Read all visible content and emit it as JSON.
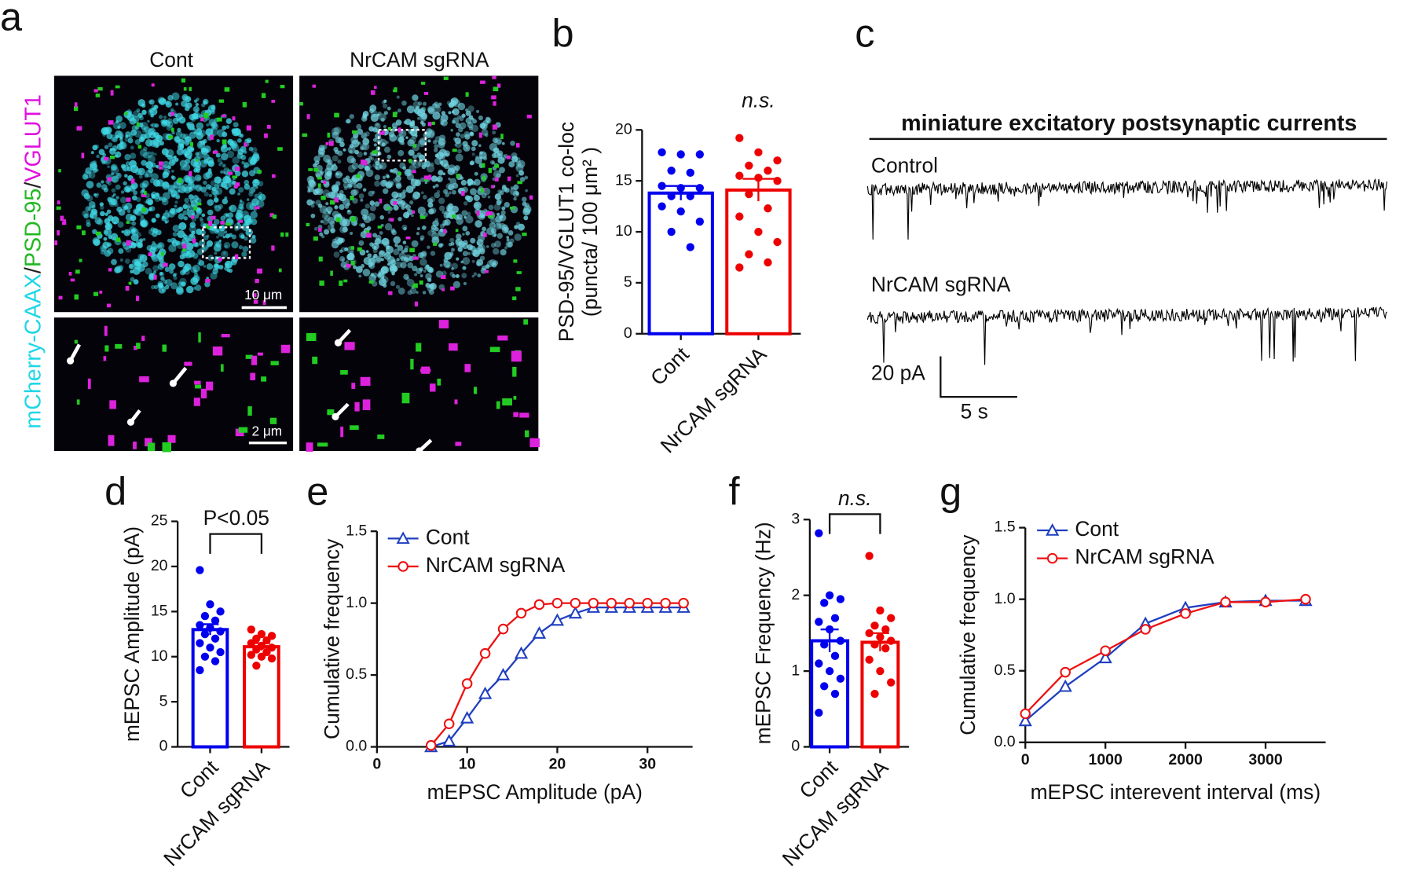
{
  "panel_labels": [
    "a",
    "b",
    "c",
    "d",
    "e",
    "f",
    "g"
  ],
  "panel_a": {
    "conditions": [
      "Cont",
      "NrCAM sgRNA"
    ],
    "label_parts": [
      {
        "text": "mCherry-CAAX",
        "color": "#1fd6e6"
      },
      {
        "text": "/",
        "color": "#222222"
      },
      {
        "text": "PSD-95",
        "color": "#22b822"
      },
      {
        "text": "/",
        "color": "#222222"
      },
      {
        "text": "VGLUT1",
        "color": "#e010e0"
      }
    ],
    "scale_bars": [
      "10 μm",
      "2 μm"
    ]
  },
  "panel_c": {
    "title": "miniature excitatory postsynaptic currents",
    "traces": [
      "Control",
      "NrCAM sgRNA"
    ],
    "scale_y": "20 pA",
    "scale_x": "5 s"
  },
  "chart_data": [
    {
      "type": "bar",
      "ylabel": [
        "PSD-95/VGLUT1 co-loc",
        "(puncta/ 100 μm² )"
      ],
      "categories": [
        "Cont",
        "NrCAM sgRNA"
      ],
      "colors": [
        "#0000ee",
        "#ee0000"
      ],
      "values": [
        13.8,
        14.1
      ],
      "errors": [
        0.7,
        1.1
      ],
      "points": [
        [
          17.8,
          17.6,
          17.6,
          16.0,
          15.8,
          14.5,
          14.3,
          14.3,
          13.5,
          13.5,
          12.5,
          12.0,
          11.0,
          10.0,
          8.5
        ],
        [
          19.2,
          17.8,
          17.0,
          16.5,
          16.0,
          15.5,
          15.3,
          15.0,
          13.7,
          12.3,
          11.5,
          10.0,
          9.0,
          7.8,
          7.0,
          6.5
        ]
      ],
      "ylim": [
        0,
        20
      ],
      "yticks": [
        0,
        5,
        10,
        15,
        20
      ],
      "annotation": "n.s."
    },
    {
      "type": "bar",
      "ylabel": [
        "mEPSC Amplitude (pA)"
      ],
      "categories": [
        "Cont",
        "NrCAM sgRNA"
      ],
      "colors": [
        "#0000ee",
        "#ee0000"
      ],
      "values": [
        13.0,
        11.1
      ],
      "errors": [
        0.6,
        0.4
      ],
      "points": [
        [
          19.6,
          15.8,
          15.0,
          14.5,
          14.0,
          13.5,
          13.2,
          12.8,
          12.5,
          12.0,
          11.5,
          11.0,
          10.5,
          10.0,
          9.5,
          8.5
        ],
        [
          13.0,
          12.5,
          12.3,
          12.0,
          11.8,
          11.5,
          11.2,
          11.0,
          10.8,
          10.5,
          10.2,
          10.0,
          9.8,
          9.0
        ]
      ],
      "ylim": [
        0,
        25
      ],
      "yticks": [
        0,
        5,
        10,
        15,
        20,
        25
      ],
      "annotation": "P<0.05"
    },
    {
      "type": "line",
      "xlabel": "mEPSC Amplitude (pA)",
      "ylabel": "Cumulative frequency",
      "x": [
        6,
        8,
        10,
        12,
        14,
        16,
        18,
        20,
        22,
        24,
        26,
        28,
        30,
        32,
        34
      ],
      "series": [
        {
          "name": "Cont",
          "color": "#1f3fbf",
          "marker": "triangle",
          "values": [
            0,
            0.04,
            0.2,
            0.37,
            0.5,
            0.65,
            0.79,
            0.88,
            0.93,
            0.97,
            0.97,
            0.97,
            0.97,
            0.97,
            0.97
          ]
        },
        {
          "name": "NrCAM sgRNA",
          "color": "#ee1111",
          "marker": "circle",
          "values": [
            0.01,
            0.16,
            0.44,
            0.65,
            0.82,
            0.93,
            0.99,
            1.0,
            1.0,
            1.0,
            1.0,
            1.0,
            1.0,
            1.0,
            1.0
          ]
        }
      ],
      "xlim": [
        0,
        35
      ],
      "xticks": [
        0,
        10,
        20,
        30
      ],
      "ylim": [
        0,
        1.5
      ],
      "yticks": [
        {
          "value": 0,
          "label": "0.0"
        },
        0.5,
        {
          "value": 1,
          "label": "1.0"
        },
        1.5
      ],
      "legend": "upper left"
    },
    {
      "type": "bar",
      "ylabel": [
        "mEPSC Frequency (Hz)"
      ],
      "categories": [
        "Cont",
        "NrCAM sgRNA"
      ],
      "colors": [
        "#0000ee",
        "#ee0000"
      ],
      "values": [
        1.4,
        1.38
      ],
      "errors": [
        0.15,
        0.12
      ],
      "points": [
        [
          2.82,
          2.0,
          1.95,
          1.9,
          1.7,
          1.65,
          1.55,
          1.4,
          1.35,
          1.2,
          1.1,
          1.0,
          0.9,
          0.8,
          0.7,
          0.45
        ],
        [
          2.52,
          1.8,
          1.7,
          1.6,
          1.55,
          1.5,
          1.45,
          1.4,
          1.35,
          1.3,
          1.15,
          1.0,
          0.85,
          0.7
        ]
      ],
      "ylim": [
        0,
        3
      ],
      "yticks": [
        0,
        1,
        2,
        3
      ],
      "annotation": "n.s."
    },
    {
      "type": "line",
      "xlabel": "mEPSC interevent interval (ms)",
      "ylabel": "Cumulative frequency",
      "x": [
        0,
        500,
        1000,
        1500,
        2000,
        2500,
        3000,
        3500
      ],
      "series": [
        {
          "name": "Cont",
          "color": "#1f3fbf",
          "marker": "triangle",
          "values": [
            0.15,
            0.39,
            0.59,
            0.83,
            0.94,
            0.98,
            0.99,
            0.99
          ]
        },
        {
          "name": "NrCAM sgRNA",
          "color": "#ee1111",
          "marker": "circle",
          "values": [
            0.2,
            0.49,
            0.64,
            0.79,
            0.9,
            0.98,
            0.98,
            1.0
          ]
        }
      ],
      "xlim": [
        0,
        3750
      ],
      "xticks": [
        0,
        1000,
        2000,
        3000
      ],
      "ylim": [
        0,
        1.5
      ],
      "yticks": [
        {
          "value": 0,
          "label": "0.0"
        },
        0.5,
        {
          "value": 1,
          "label": "1.0"
        },
        1.5
      ],
      "legend": "upper left"
    }
  ]
}
